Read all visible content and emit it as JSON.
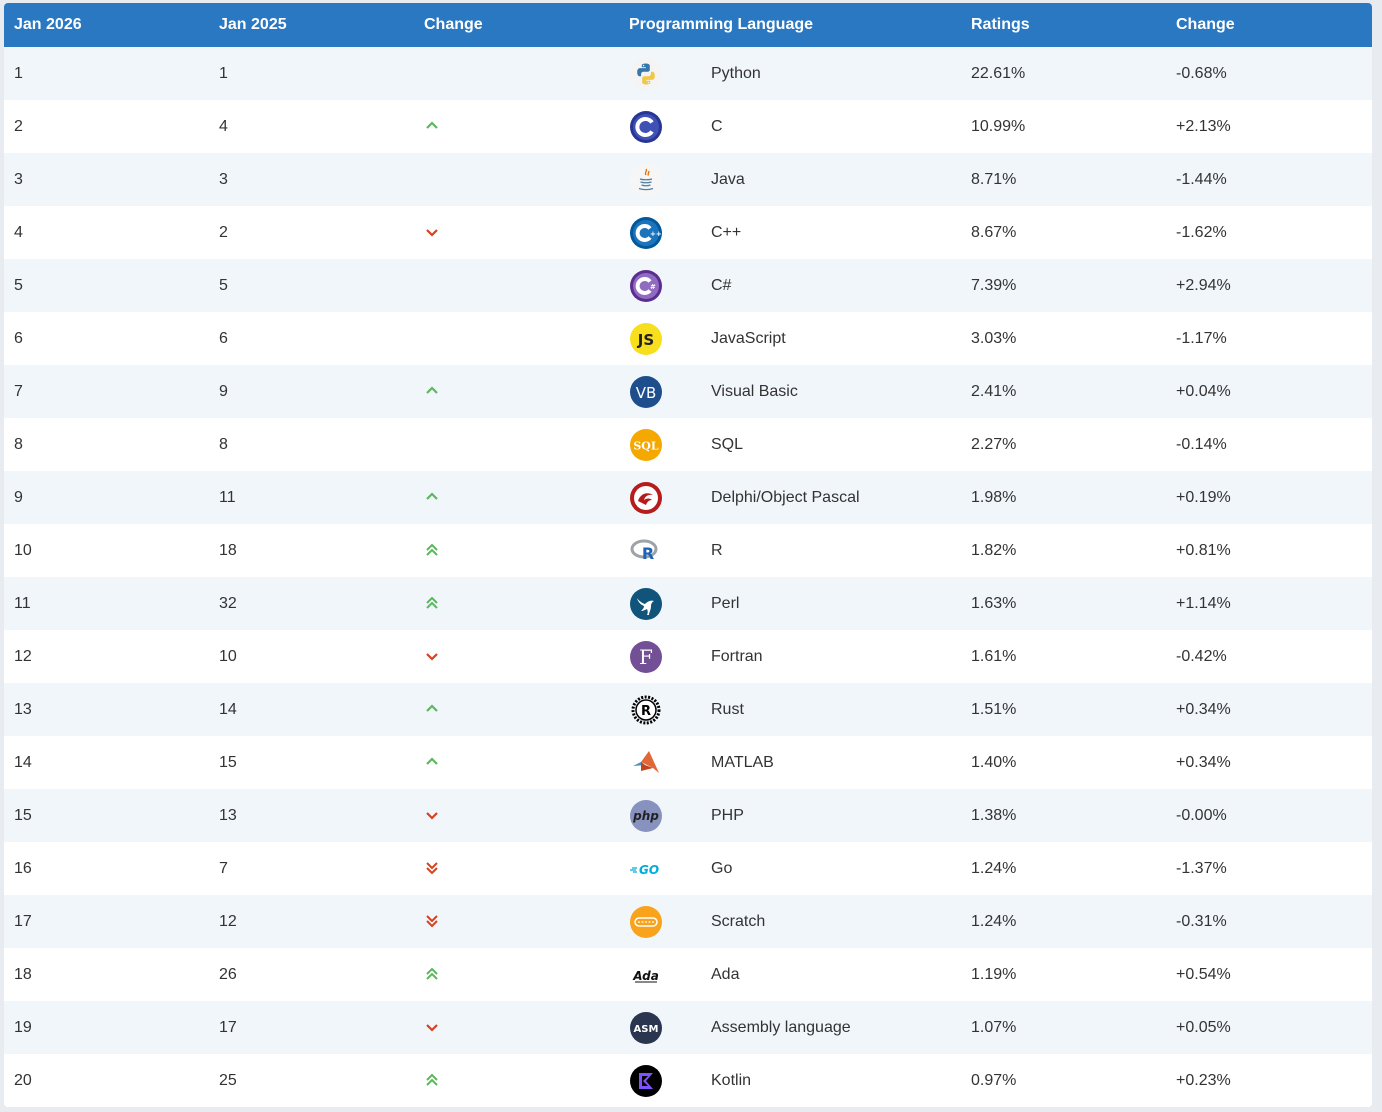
{
  "table": {
    "headers": [
      "Jan 2026",
      "Jan 2025",
      "Change",
      "Programming Language",
      "Ratings",
      "Change"
    ],
    "rows": [
      {
        "rank_2026": "1",
        "rank_2025": "1",
        "trend": "none",
        "logo": "python-logo-icon",
        "language": "Python",
        "rating": "22.61%",
        "change": "-0.68%"
      },
      {
        "rank_2026": "2",
        "rank_2025": "4",
        "trend": "up",
        "logo": "c-logo-icon",
        "language": "C",
        "rating": "10.99%",
        "change": "+2.13%"
      },
      {
        "rank_2026": "3",
        "rank_2025": "3",
        "trend": "none",
        "logo": "java-logo-icon",
        "language": "Java",
        "rating": "8.71%",
        "change": "-1.44%"
      },
      {
        "rank_2026": "4",
        "rank_2025": "2",
        "trend": "down",
        "logo": "cpp-logo-icon",
        "language": "C++",
        "rating": "8.67%",
        "change": "-1.62%"
      },
      {
        "rank_2026": "5",
        "rank_2025": "5",
        "trend": "none",
        "logo": "csharp-logo-icon",
        "language": "C#",
        "rating": "7.39%",
        "change": "+2.94%"
      },
      {
        "rank_2026": "6",
        "rank_2025": "6",
        "trend": "none",
        "logo": "javascript-logo-icon",
        "language": "JavaScript",
        "rating": "3.03%",
        "change": "-1.17%"
      },
      {
        "rank_2026": "7",
        "rank_2025": "9",
        "trend": "up",
        "logo": "visual-basic-logo-icon",
        "language": "Visual Basic",
        "rating": "2.41%",
        "change": "+0.04%"
      },
      {
        "rank_2026": "8",
        "rank_2025": "8",
        "trend": "none",
        "logo": "sql-logo-icon",
        "language": "SQL",
        "rating": "2.27%",
        "change": "-0.14%"
      },
      {
        "rank_2026": "9",
        "rank_2025": "11",
        "trend": "up",
        "logo": "delphi-logo-icon",
        "language": "Delphi/Object Pascal",
        "rating": "1.98%",
        "change": "+0.19%"
      },
      {
        "rank_2026": "10",
        "rank_2025": "18",
        "trend": "up2",
        "logo": "r-logo-icon",
        "language": "R",
        "rating": "1.82%",
        "change": "+0.81%"
      },
      {
        "rank_2026": "11",
        "rank_2025": "32",
        "trend": "up2",
        "logo": "perl-logo-icon",
        "language": "Perl",
        "rating": "1.63%",
        "change": "+1.14%"
      },
      {
        "rank_2026": "12",
        "rank_2025": "10",
        "trend": "down",
        "logo": "fortran-logo-icon",
        "language": "Fortran",
        "rating": "1.61%",
        "change": "-0.42%"
      },
      {
        "rank_2026": "13",
        "rank_2025": "14",
        "trend": "up",
        "logo": "rust-logo-icon",
        "language": "Rust",
        "rating": "1.51%",
        "change": "+0.34%"
      },
      {
        "rank_2026": "14",
        "rank_2025": "15",
        "trend": "up",
        "logo": "matlab-logo-icon",
        "language": "MATLAB",
        "rating": "1.40%",
        "change": "+0.34%"
      },
      {
        "rank_2026": "15",
        "rank_2025": "13",
        "trend": "down",
        "logo": "php-logo-icon",
        "language": "PHP",
        "rating": "1.38%",
        "change": "-0.00%"
      },
      {
        "rank_2026": "16",
        "rank_2025": "7",
        "trend": "down2",
        "logo": "go-logo-icon",
        "language": "Go",
        "rating": "1.24%",
        "change": "-1.37%"
      },
      {
        "rank_2026": "17",
        "rank_2025": "12",
        "trend": "down2",
        "logo": "scratch-logo-icon",
        "language": "Scratch",
        "rating": "1.24%",
        "change": "-0.31%"
      },
      {
        "rank_2026": "18",
        "rank_2025": "26",
        "trend": "up2",
        "logo": "ada-logo-icon",
        "language": "Ada",
        "rating": "1.19%",
        "change": "+0.54%"
      },
      {
        "rank_2026": "19",
        "rank_2025": "17",
        "trend": "down",
        "logo": "assembly-logo-icon",
        "language": "Assembly language",
        "rating": "1.07%",
        "change": "+0.05%"
      },
      {
        "rank_2026": "20",
        "rank_2025": "25",
        "trend": "up2",
        "logo": "kotlin-logo-icon",
        "language": "Kotlin",
        "rating": "0.97%",
        "change": "+0.23%"
      }
    ]
  },
  "logo_text": {
    "javascript": "JS",
    "visual_basic": "VB",
    "sql": "SQL",
    "r": "R",
    "fortran": "F",
    "php": "php",
    "go": "GO",
    "ada": "Ada",
    "assembly": "ASM"
  },
  "colors": {
    "header_bg": "#2b78c2",
    "row_alt_bg": "#f1f6fb",
    "trend_up": "#5cb85c",
    "trend_down": "#d9411e"
  }
}
